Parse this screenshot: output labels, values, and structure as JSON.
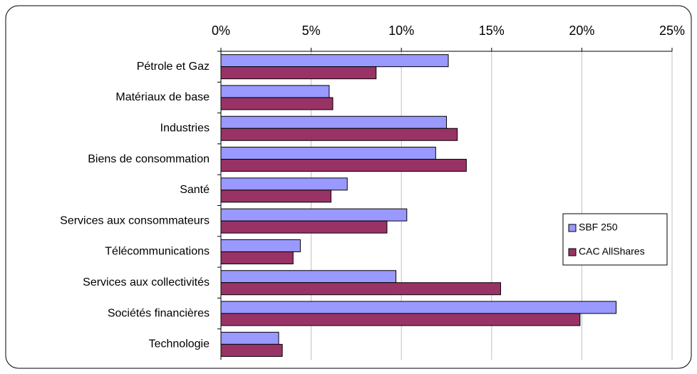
{
  "chart_data": {
    "type": "bar",
    "orientation": "horizontal",
    "categories": [
      "Pétrole et Gaz",
      "Matériaux de base",
      "Industries",
      "Biens de consommation",
      "Santé",
      "Services aux consommateurs",
      "Télécommunications",
      "Services aux collectivités",
      "Sociétés financières",
      "Technologie"
    ],
    "series": [
      {
        "name": "SBF 250",
        "color": "#9999ff",
        "values": [
          12.6,
          6.0,
          12.5,
          11.9,
          7.0,
          10.3,
          4.4,
          9.7,
          21.9,
          3.2
        ]
      },
      {
        "name": "CAC AllShares",
        "color": "#993366",
        "values": [
          8.6,
          6.2,
          13.1,
          13.6,
          6.1,
          9.2,
          4.0,
          15.5,
          19.9,
          3.4
        ]
      }
    ],
    "xlim": [
      0,
      25
    ],
    "xticks": [
      {
        "value": 0,
        "label": "0%"
      },
      {
        "value": 5,
        "label": "5%"
      },
      {
        "value": 10,
        "label": "10%"
      },
      {
        "value": 15,
        "label": "15%"
      },
      {
        "value": 20,
        "label": "20%"
      },
      {
        "value": 25,
        "label": "25%"
      }
    ],
    "grid": true,
    "legend": "right"
  }
}
